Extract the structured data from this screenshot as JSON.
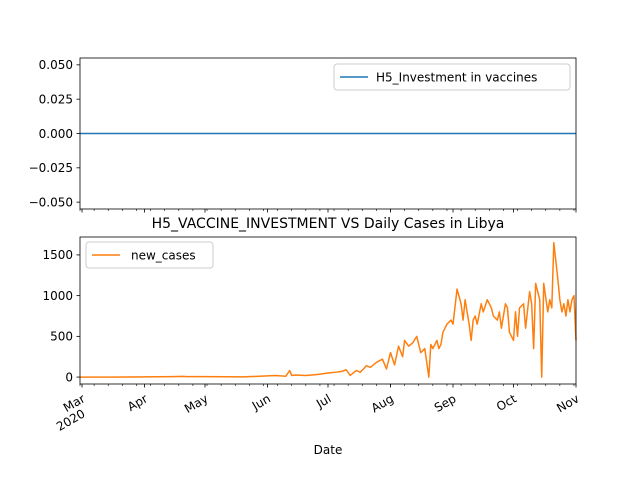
{
  "chart_data": [
    {
      "type": "line",
      "title": "",
      "xlabel": "",
      "ylabel": "",
      "ylim": [
        -0.055,
        0.055
      ],
      "yticks": [
        -0.05,
        -0.025,
        0.0,
        0.025,
        0.05
      ],
      "ytick_labels": [
        "−0.050",
        "−0.025",
        "0.000",
        "0.025",
        "0.050"
      ],
      "legend_position": "upper right",
      "series": [
        {
          "name": "H5_Investment in vaccines",
          "color": "#1f77b4",
          "x": [
            "2020-02-29",
            "2020-11-01"
          ],
          "y": [
            0,
            0
          ]
        }
      ]
    },
    {
      "type": "line",
      "title": "H5_VACCINE_INVESTMENT VS Daily Cases in Libya",
      "xlabel": "Date",
      "ylabel": "",
      "ylim": [
        -85,
        1720
      ],
      "yticks": [
        0,
        500,
        1000,
        1500
      ],
      "ytick_labels": [
        "0",
        "500",
        "1000",
        "1500"
      ],
      "xlim": [
        "2020-02-29",
        "2020-11-01"
      ],
      "x_ticks": [
        {
          "date": "2020-03-01",
          "label": "Mar",
          "sub": "2020"
        },
        {
          "date": "2020-04-01",
          "label": "Apr",
          "sub": ""
        },
        {
          "date": "2020-05-01",
          "label": "May",
          "sub": ""
        },
        {
          "date": "2020-06-01",
          "label": "Jun",
          "sub": ""
        },
        {
          "date": "2020-07-01",
          "label": "Jul",
          "sub": ""
        },
        {
          "date": "2020-08-01",
          "label": "Aug",
          "sub": ""
        },
        {
          "date": "2020-09-01",
          "label": "Sep",
          "sub": ""
        },
        {
          "date": "2020-10-01",
          "label": "Oct",
          "sub": ""
        },
        {
          "date": "2020-11-01",
          "label": "Nov",
          "sub": ""
        }
      ],
      "legend_position": "upper left",
      "grid": false,
      "series": [
        {
          "name": "new_cases",
          "color": "#ff7f0e",
          "x": [
            "2020-02-29",
            "2020-03-15",
            "2020-04-01",
            "2020-04-15",
            "2020-04-20",
            "2020-04-22",
            "2020-05-01",
            "2020-05-20",
            "2020-06-01",
            "2020-06-05",
            "2020-06-10",
            "2020-06-12",
            "2020-06-13",
            "2020-06-15",
            "2020-06-20",
            "2020-06-25",
            "2020-06-28",
            "2020-07-01",
            "2020-07-05",
            "2020-07-08",
            "2020-07-10",
            "2020-07-12",
            "2020-07-15",
            "2020-07-17",
            "2020-07-19",
            "2020-07-20",
            "2020-07-22",
            "2020-07-25",
            "2020-07-28",
            "2020-07-30",
            "2020-08-01",
            "2020-08-03",
            "2020-08-05",
            "2020-08-07",
            "2020-08-08",
            "2020-08-10",
            "2020-08-12",
            "2020-08-14",
            "2020-08-16",
            "2020-08-18",
            "2020-08-20",
            "2020-08-21",
            "2020-08-22",
            "2020-08-24",
            "2020-08-25",
            "2020-08-26",
            "2020-08-27",
            "2020-08-29",
            "2020-08-31",
            "2020-09-01",
            "2020-09-03",
            "2020-09-05",
            "2020-09-06",
            "2020-09-07",
            "2020-09-09",
            "2020-09-10",
            "2020-09-11",
            "2020-09-12",
            "2020-09-13",
            "2020-09-15",
            "2020-09-16",
            "2020-09-18",
            "2020-09-20",
            "2020-09-21",
            "2020-09-23",
            "2020-09-24",
            "2020-09-25",
            "2020-09-27",
            "2020-09-28",
            "2020-09-29",
            "2020-10-01",
            "2020-10-02",
            "2020-10-03",
            "2020-10-04",
            "2020-10-06",
            "2020-10-07",
            "2020-10-09",
            "2020-10-10",
            "2020-10-11",
            "2020-10-12",
            "2020-10-14",
            "2020-10-15",
            "2020-10-16",
            "2020-10-18",
            "2020-10-19",
            "2020-10-20",
            "2020-10-21",
            "2020-10-23",
            "2020-10-24",
            "2020-10-25",
            "2020-10-26",
            "2020-10-27",
            "2020-10-28",
            "2020-10-29",
            "2020-10-30",
            "2020-10-31",
            "2020-11-01"
          ],
          "y": [
            0,
            0,
            3,
            5,
            8,
            5,
            5,
            2,
            15,
            20,
            10,
            80,
            20,
            25,
            20,
            30,
            40,
            50,
            60,
            70,
            90,
            20,
            80,
            60,
            110,
            140,
            120,
            180,
            220,
            100,
            300,
            150,
            380,
            250,
            450,
            380,
            420,
            500,
            300,
            350,
            0,
            400,
            350,
            450,
            350,
            400,
            550,
            650,
            700,
            650,
            1080,
            900,
            700,
            950,
            650,
            450,
            700,
            750,
            650,
            900,
            800,
            950,
            850,
            750,
            700,
            800,
            600,
            900,
            850,
            550,
            450,
            800,
            500,
            850,
            900,
            600,
            1050,
            900,
            350,
            1150,
            950,
            0,
            1150,
            800,
            950,
            850,
            1650,
            1200,
            950,
            800,
            900,
            750,
            950,
            800,
            950,
            1000,
            450
          ]
        }
      ]
    }
  ]
}
